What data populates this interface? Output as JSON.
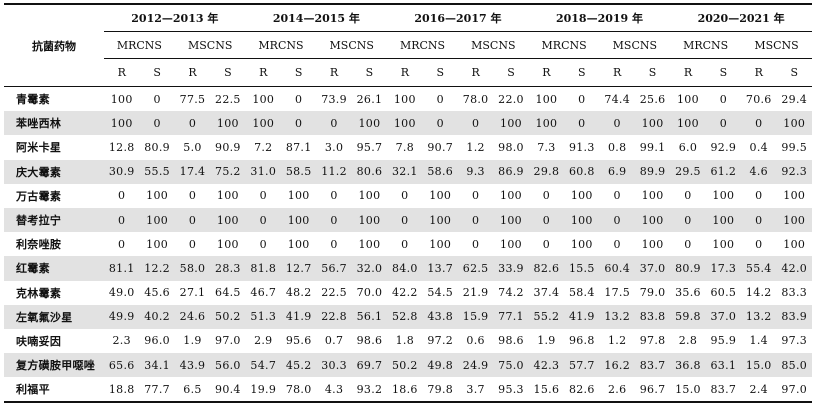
{
  "header": {
    "drug_col": "抗菌药物",
    "periods": [
      "2012—2013 年",
      "2014—2015 年",
      "2016—2017 年",
      "2018—2019 年",
      "2020—2021 年"
    ],
    "groups": [
      "MRCNS",
      "MSCNS"
    ],
    "rs": [
      "R",
      "S"
    ]
  },
  "rows": [
    {
      "name": "青霉素",
      "values": [
        "100",
        "0",
        "77.5",
        "22.5",
        "100",
        "0",
        "73.9",
        "26.1",
        "100",
        "0",
        "78.0",
        "22.0",
        "100",
        "0",
        "74.4",
        "25.6",
        "100",
        "0",
        "70.6",
        "29.4"
      ]
    },
    {
      "name": "苯唑西林",
      "values": [
        "100",
        "0",
        "0",
        "100",
        "100",
        "0",
        "0",
        "100",
        "100",
        "0",
        "0",
        "100",
        "100",
        "0",
        "0",
        "100",
        "100",
        "0",
        "0",
        "100"
      ]
    },
    {
      "name": "阿米卡星",
      "values": [
        "12.8",
        "80.9",
        "5.0",
        "90.9",
        "7.2",
        "87.1",
        "3.0",
        "95.7",
        "7.8",
        "90.7",
        "1.2",
        "98.0",
        "7.3",
        "91.3",
        "0.8",
        "99.1",
        "6.0",
        "92.9",
        "0.4",
        "99.5"
      ]
    },
    {
      "name": "庆大霉素",
      "values": [
        "30.9",
        "55.5",
        "17.4",
        "75.2",
        "31.0",
        "58.5",
        "11.2",
        "80.6",
        "32.1",
        "58.6",
        "9.3",
        "86.9",
        "29.8",
        "60.8",
        "6.9",
        "89.9",
        "29.5",
        "61.2",
        "4.6",
        "92.3"
      ]
    },
    {
      "name": "万古霉素",
      "values": [
        "0",
        "100",
        "0",
        "100",
        "0",
        "100",
        "0",
        "100",
        "0",
        "100",
        "0",
        "100",
        "0",
        "100",
        "0",
        "100",
        "0",
        "100",
        "0",
        "100"
      ]
    },
    {
      "name": "替考拉宁",
      "values": [
        "0",
        "100",
        "0",
        "100",
        "0",
        "100",
        "0",
        "100",
        "0",
        "100",
        "0",
        "100",
        "0",
        "100",
        "0",
        "100",
        "0",
        "100",
        "0",
        "100"
      ]
    },
    {
      "name": "利奈唑胺",
      "values": [
        "0",
        "100",
        "0",
        "100",
        "0",
        "100",
        "0",
        "100",
        "0",
        "100",
        "0",
        "100",
        "0",
        "100",
        "0",
        "100",
        "0",
        "100",
        "0",
        "100"
      ]
    },
    {
      "name": "红霉素",
      "values": [
        "81.1",
        "12.2",
        "58.0",
        "28.3",
        "81.8",
        "12.7",
        "56.7",
        "32.0",
        "84.0",
        "13.7",
        "62.5",
        "33.9",
        "82.6",
        "15.5",
        "60.4",
        "37.0",
        "80.9",
        "17.3",
        "55.4",
        "42.0"
      ]
    },
    {
      "name": "克林霉素",
      "values": [
        "49.0",
        "45.6",
        "27.1",
        "64.5",
        "46.7",
        "48.2",
        "22.5",
        "70.0",
        "42.2",
        "54.5",
        "21.9",
        "74.2",
        "37.4",
        "58.4",
        "17.5",
        "79.0",
        "35.6",
        "60.5",
        "14.2",
        "83.3"
      ]
    },
    {
      "name": "左氧氟沙星",
      "values": [
        "49.9",
        "40.2",
        "24.6",
        "50.2",
        "51.3",
        "41.9",
        "22.8",
        "56.1",
        "52.8",
        "43.8",
        "15.9",
        "77.1",
        "55.2",
        "41.9",
        "13.2",
        "83.8",
        "59.8",
        "37.0",
        "13.2",
        "83.9"
      ]
    },
    {
      "name": "呋喃妥因",
      "values": [
        "2.3",
        "96.0",
        "1.9",
        "97.0",
        "2.9",
        "95.6",
        "0.7",
        "98.6",
        "1.8",
        "97.2",
        "0.6",
        "98.6",
        "1.9",
        "96.8",
        "1.2",
        "97.8",
        "2.8",
        "95.9",
        "1.4",
        "97.3"
      ]
    },
    {
      "name": "复方磺胺甲噁唑",
      "values": [
        "65.6",
        "34.1",
        "43.9",
        "56.0",
        "54.7",
        "45.2",
        "30.3",
        "69.7",
        "50.2",
        "49.8",
        "24.9",
        "75.0",
        "42.3",
        "57.7",
        "16.2",
        "83.7",
        "36.8",
        "63.1",
        "15.0",
        "85.0"
      ]
    },
    {
      "name": "利福平",
      "values": [
        "18.8",
        "77.7",
        "6.5",
        "90.4",
        "19.9",
        "78.0",
        "4.3",
        "93.2",
        "18.6",
        "79.8",
        "3.7",
        "95.3",
        "15.6",
        "82.6",
        "2.6",
        "96.7",
        "15.0",
        "83.7",
        "2.4",
        "97.0"
      ]
    }
  ]
}
